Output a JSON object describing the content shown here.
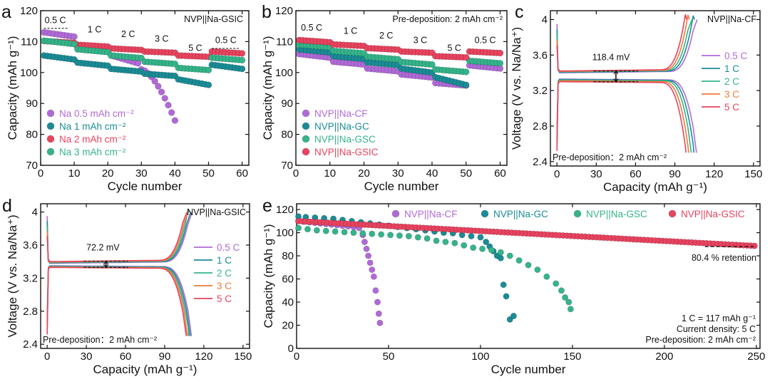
{
  "colors": {
    "purple": "#b06ad8",
    "teal": "#1a8c96",
    "pink": "#e8435f",
    "green": "#34b48a",
    "orange": "#f07a38"
  },
  "chart_data": [
    {
      "id": "a",
      "panel_letter": "a",
      "type": "scatter",
      "title": "NVP||Na-GSIC",
      "xlabel": "Cycle number",
      "ylabel": "Capacity (mAh g⁻¹)",
      "xlim": [
        0,
        62
      ],
      "ylim": [
        70,
        120
      ],
      "xticks": [
        0,
        10,
        20,
        30,
        40,
        50,
        60
      ],
      "yticks": [
        70,
        80,
        90,
        100,
        110,
        120
      ],
      "annotations": [
        {
          "text": "0.5 C",
          "x": 1.2,
          "y": 116
        },
        {
          "text": "1 C",
          "x": 14,
          "y": 113
        },
        {
          "text": "2 C",
          "x": 24,
          "y": 111.5
        },
        {
          "text": "3 C",
          "x": 34,
          "y": 110
        },
        {
          "text": "5 C",
          "x": 44,
          "y": 107
        },
        {
          "text": "0.5 C",
          "x": 52,
          "y": 109.5
        }
      ],
      "legend": [
        "Na  0.5 mAh cm⁻²",
        "Na   1  mAh cm⁻²",
        "Na   2  mAh cm⁻²",
        "Na   3  mAh cm⁻²"
      ],
      "series": [
        {
          "name": "Na 0.5 mAh cm-2",
          "color": "purple",
          "segments": [
            [
              1,
              10,
              113,
              111.6
            ],
            [
              11,
              20,
              108,
              106.8
            ],
            [
              21,
              29,
              105.5,
              103
            ],
            [
              30,
              40,
              101,
              84.5
            ]
          ]
        },
        {
          "name": "Na 1 mAh cm-2",
          "color": "teal",
          "segments": [
            [
              1,
              10,
              105.5,
              104.2
            ],
            [
              11,
              20,
              103.2,
              102.2
            ],
            [
              21,
              30,
              101.2,
              100.3
            ],
            [
              31,
              40,
              99.6,
              98.9
            ],
            [
              41,
              50,
              97.8,
              96
            ],
            [
              51,
              60,
              102.5,
              101.2
            ]
          ]
        },
        {
          "name": "Na 2 mAh cm-2",
          "color": "pink",
          "segments": [
            [
              1,
              10,
              110.2,
              109.6
            ],
            [
              11,
              20,
              109,
              108.4
            ],
            [
              21,
              30,
              107.8,
              107.3
            ],
            [
              31,
              40,
              106.8,
              106.4
            ],
            [
              41,
              50,
              105.5,
              105.1
            ],
            [
              51,
              60,
              106.8,
              106.2
            ]
          ]
        },
        {
          "name": "Na 3 mAh cm-2",
          "color": "green",
          "segments": [
            [
              1,
              10,
              110.3,
              109.2
            ],
            [
              11,
              20,
              107.5,
              106.6
            ],
            [
              21,
              30,
              105.5,
              104.7
            ],
            [
              31,
              40,
              103.5,
              102.8
            ],
            [
              41,
              50,
              101.5,
              100.8
            ],
            [
              51,
              60,
              104.8,
              104
            ]
          ]
        }
      ]
    },
    {
      "id": "b",
      "panel_letter": "b",
      "type": "scatter",
      "title": "Pre-deposition: 2 mAh cm⁻²",
      "xlabel": "Cycle number",
      "ylabel": "Capacity (mAh g⁻¹)",
      "xlim": [
        0,
        62
      ],
      "ylim": [
        70,
        120
      ],
      "xticks": [
        0,
        10,
        20,
        30,
        40,
        50,
        60
      ],
      "yticks": [
        70,
        80,
        90,
        100,
        110,
        120
      ],
      "annotations": [
        {
          "text": "0.5 C",
          "x": 1.5,
          "y": 113.5
        },
        {
          "text": "1 C",
          "x": 14,
          "y": 112.5
        },
        {
          "text": "2 C",
          "x": 24.5,
          "y": 111
        },
        {
          "text": "3 C",
          "x": 34.5,
          "y": 109.5
        },
        {
          "text": "5 C",
          "x": 44.5,
          "y": 107
        },
        {
          "text": "0.5 C",
          "x": 52.5,
          "y": 109.5
        }
      ],
      "legend": [
        "NVP||Na-CF",
        "NVP||Na-GC",
        "NVP||Na-GSC",
        "NVP||Na-GSIC"
      ],
      "series": [
        {
          "name": "NVP||Na-CF",
          "color": "purple",
          "segments": [
            [
              1,
              10,
              106,
              104.8
            ],
            [
              11,
              20,
              103.5,
              102.6
            ],
            [
              21,
              30,
              101.3,
              100.4
            ],
            [
              31,
              40,
              99.4,
              98.4
            ],
            [
              41,
              50,
              96.6,
              95.8
            ],
            [
              51,
              60,
              102.3,
              101.3
            ]
          ]
        },
        {
          "name": "NVP||Na-GC",
          "color": "teal",
          "segments": [
            [
              1,
              10,
              107.5,
              106.5
            ],
            [
              11,
              20,
              105.3,
              104.4
            ],
            [
              21,
              30,
              103.3,
              102.4
            ],
            [
              31,
              40,
              101.3,
              100
            ],
            [
              41,
              50,
              98.5,
              96
            ]
          ]
        },
        {
          "name": "NVP||Na-GSC",
          "color": "green",
          "segments": [
            [
              1,
              10,
              109,
              108.2
            ],
            [
              11,
              20,
              107,
              106.2
            ],
            [
              21,
              30,
              105.1,
              104.3
            ],
            [
              31,
              40,
              103.4,
              102.6
            ],
            [
              41,
              50,
              101,
              100.2
            ],
            [
              51,
              60,
              103.8,
              103
            ]
          ]
        },
        {
          "name": "NVP||Na-GSIC",
          "color": "pink",
          "segments": [
            [
              1,
              10,
              110.5,
              109.8
            ],
            [
              11,
              20,
              109.1,
              108.6
            ],
            [
              21,
              30,
              107.9,
              107.4
            ],
            [
              31,
              40,
              106.8,
              106.4
            ],
            [
              41,
              50,
              105.3,
              104.9
            ],
            [
              51,
              60,
              106.8,
              106.3
            ]
          ]
        }
      ]
    },
    {
      "id": "c",
      "panel_letter": "c",
      "type": "line",
      "title": "NVP||Na-CF",
      "xlabel": "Capacity (mAh g⁻¹)",
      "ylabel": "Voltage (V vs. Na/Na⁺)",
      "xlim": [
        -5,
        155
      ],
      "ylim": [
        2.35,
        4.1
      ],
      "xticks": [
        0,
        30,
        60,
        90,
        120,
        150
      ],
      "yticks": [
        2.4,
        2.8,
        3.2,
        3.6,
        4.0
      ],
      "gap_label": "118.4 mV",
      "note": "Pre-deposition：2  mAh cm⁻²",
      "legend": [
        "0.5 C",
        "1  C",
        "2  C",
        "3  C",
        "5  C"
      ],
      "curves": [
        {
          "name": "0.5 C",
          "color": "purple",
          "cap": 106,
          "charge": 3.4,
          "discharge": 3.33
        },
        {
          "name": "1 C",
          "color": "teal",
          "cap": 104,
          "charge": 3.405,
          "discharge": 3.325
        },
        {
          "name": "2 C",
          "color": "green",
          "cap": 102,
          "charge": 3.41,
          "discharge": 3.32
        },
        {
          "name": "3 C",
          "color": "orange",
          "cap": 100,
          "charge": 3.415,
          "discharge": 3.31
        },
        {
          "name": "5 C",
          "color": "pink",
          "cap": 98,
          "charge": 3.42,
          "discharge": 3.3
        }
      ]
    },
    {
      "id": "d",
      "panel_letter": "d",
      "type": "line",
      "title": "NVP||Na-GSIC",
      "xlabel": "Capacity (mAh g⁻¹)",
      "ylabel": "Voltage (V vs. Na/Na⁺)",
      "xlim": [
        -5,
        155
      ],
      "ylim": [
        2.35,
        4.1
      ],
      "xticks": [
        0,
        30,
        60,
        90,
        120,
        150
      ],
      "yticks": [
        2.4,
        2.8,
        3.2,
        3.6,
        4.0
      ],
      "gap_label": "72.2 mV",
      "note": "Pre-deposition：2  mAh cm⁻²",
      "legend": [
        "0.5 C",
        "1  C",
        "2  C",
        "3  C",
        "5  C"
      ],
      "curves": [
        {
          "name": "0.5 C",
          "color": "purple",
          "cap": 110,
          "charge": 3.38,
          "discharge": 3.35
        },
        {
          "name": "1 C",
          "color": "teal",
          "cap": 109,
          "charge": 3.385,
          "discharge": 3.345
        },
        {
          "name": "2 C",
          "color": "green",
          "cap": 108,
          "charge": 3.39,
          "discharge": 3.34
        },
        {
          "name": "3 C",
          "color": "orange",
          "cap": 107,
          "charge": 3.395,
          "discharge": 3.335
        },
        {
          "name": "5 C",
          "color": "pink",
          "cap": 106,
          "charge": 3.4,
          "discharge": 3.33
        }
      ]
    },
    {
      "id": "e",
      "panel_letter": "e",
      "type": "scatter",
      "xlabel": "Cycle number",
      "ylabel": "Capacity (mAh g⁻¹)",
      "xlim": [
        0,
        252
      ],
      "ylim": [
        0,
        125
      ],
      "xticks": [
        0,
        50,
        100,
        150,
        200,
        250
      ],
      "yticks": [
        0,
        20,
        40,
        60,
        80,
        100,
        120
      ],
      "legend": [
        "NVP||Na-CF",
        "NVP||Na-GC",
        "NVP||Na-GSC",
        "NVP||Na-GSIC"
      ],
      "retention_label": "80.4 % retention",
      "notes": [
        "1 C = 117 mAh g⁻¹",
        "Current density: 5 C",
        "Pre-deposition: 2 mAh cm⁻²"
      ],
      "series": [
        {
          "name": "NVP||Na-CF",
          "color": "purple",
          "points": [
            [
              1,
              110
            ],
            [
              4,
              109.5
            ],
            [
              7,
              109
            ],
            [
              10,
              108.5
            ],
            [
              13,
              108
            ],
            [
              16,
              107.5
            ],
            [
              19,
              107
            ],
            [
              22,
              106.5
            ],
            [
              25,
              106
            ],
            [
              28,
              105.5
            ],
            [
              31,
              105
            ],
            [
              34,
              104
            ],
            [
              36,
              98
            ],
            [
              37,
              92
            ],
            [
              38,
              86
            ],
            [
              39,
              80
            ],
            [
              40,
              74
            ],
            [
              41,
              68
            ],
            [
              42,
              62
            ],
            [
              43,
              50
            ],
            [
              44,
              40
            ],
            [
              44.7,
              30
            ],
            [
              45.3,
              22
            ]
          ]
        },
        {
          "name": "NVP||Na-GC",
          "color": "teal",
          "points": [
            [
              1,
              114
            ],
            [
              5,
              113.5
            ],
            [
              10,
              113
            ],
            [
              15,
              112.5
            ],
            [
              20,
              112
            ],
            [
              25,
              111
            ],
            [
              30,
              110
            ],
            [
              35,
              109
            ],
            [
              40,
              108
            ],
            [
              45,
              107
            ],
            [
              50,
              106
            ],
            [
              55,
              105
            ],
            [
              60,
              104
            ],
            [
              65,
              103
            ],
            [
              70,
              102
            ],
            [
              75,
              101
            ],
            [
              80,
              100
            ],
            [
              85,
              99.5
            ],
            [
              90,
              98
            ],
            [
              95,
              97
            ],
            [
              100,
              96
            ],
            [
              103,
              92
            ],
            [
              105,
              88
            ],
            [
              107,
              84
            ],
            [
              109,
              80
            ],
            [
              111,
              78
            ],
            [
              112.5,
              55
            ],
            [
              114,
              45
            ],
            [
              116,
              25
            ],
            [
              118,
              28
            ]
          ]
        },
        {
          "name": "NVP||Na-GSC",
          "color": "green",
          "points": [
            [
              1,
              104
            ],
            [
              6,
              103
            ],
            [
              11,
              102
            ],
            [
              16,
              101.5
            ],
            [
              21,
              101
            ],
            [
              26,
              100.5
            ],
            [
              31,
              100
            ],
            [
              36,
              99.5
            ],
            [
              41,
              99
            ],
            [
              46,
              98.5
            ],
            [
              51,
              98
            ],
            [
              56,
              97.5
            ],
            [
              61,
              97
            ],
            [
              66,
              96
            ],
            [
              71,
              95
            ],
            [
              76,
              93
            ],
            [
              81,
              92
            ],
            [
              86,
              91
            ],
            [
              91,
              89
            ],
            [
              96,
              87
            ],
            [
              101,
              86
            ],
            [
              106,
              85
            ],
            [
              111,
              83
            ],
            [
              116,
              80
            ],
            [
              121,
              76
            ],
            [
              126,
              72
            ],
            [
              131,
              68
            ],
            [
              136,
              62
            ],
            [
              141,
              56
            ],
            [
              144,
              50
            ],
            [
              146,
              44
            ],
            [
              148,
              40
            ],
            [
              149,
              34
            ]
          ]
        },
        {
          "name": "NVP||Na-GSIC",
          "color": "pink",
          "points": "linear:1,110;250,88.5;step:2"
        }
      ]
    }
  ]
}
